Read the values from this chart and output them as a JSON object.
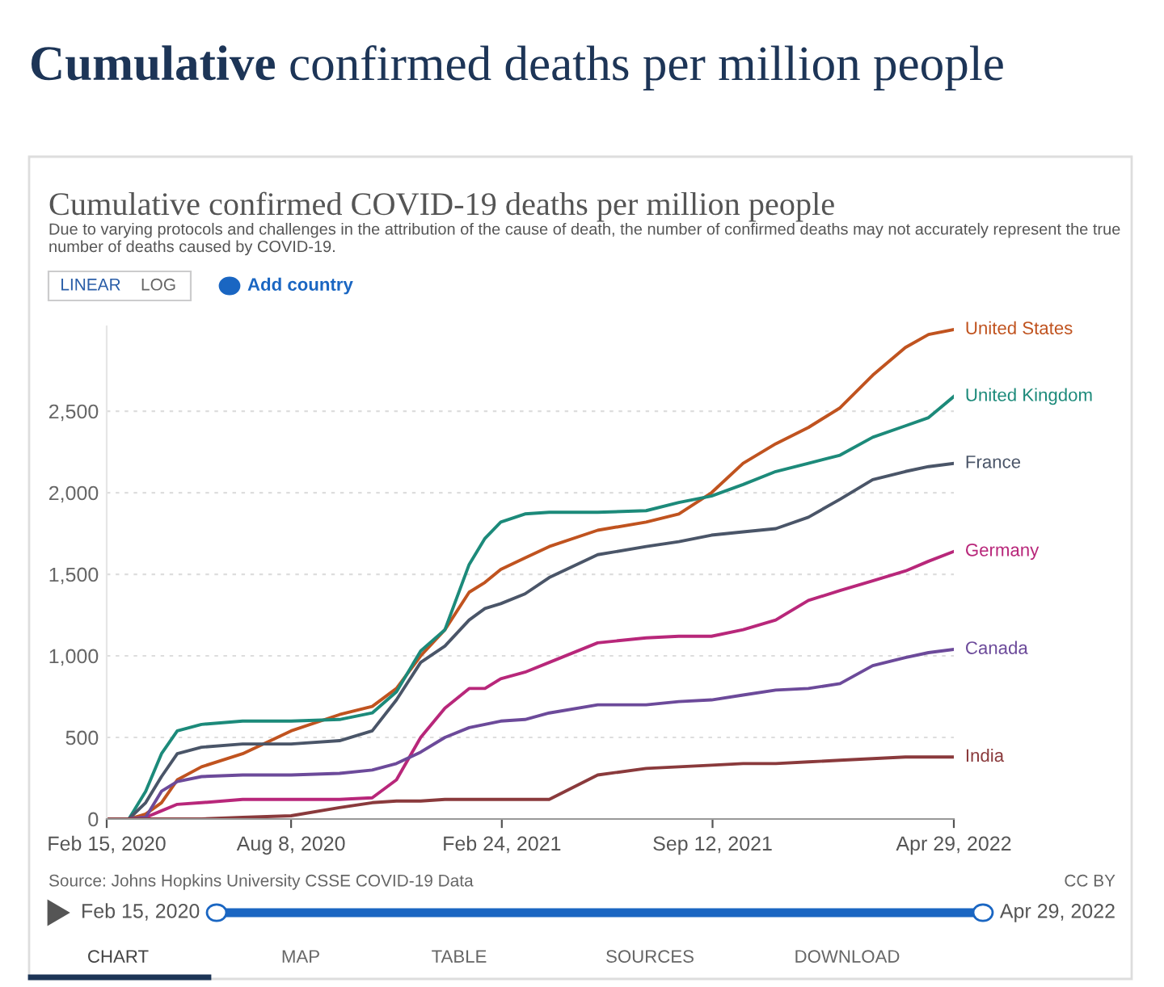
{
  "chart_data": {
    "type": "line",
    "title": "Cumulative confirmed COVID-19 deaths per million people",
    "subtitle": "Due to varying protocols and challenges in the attribution of the cause of death, the number of confirmed deaths may not accurately represent the true number of deaths caused by COVID-19.",
    "annotations": [
      "Cumulative confirmed deaths per million people",
      "LINEAR",
      "LOG",
      "Add country",
      "Source: Johns Hopkins University CSSE COVID-19 Data",
      "CC BY",
      "Feb 15, 2020",
      "Apr 29, 2022",
      "CHART",
      "MAP",
      "TABLE",
      "SOURCES",
      "DOWNLOAD"
    ],
    "x": [
      "2020-02-15",
      "2020-03-07",
      "2020-03-23",
      "2020-04-07",
      "2020-04-22",
      "2020-05-15",
      "2020-06-23",
      "2020-08-08",
      "2020-09-23",
      "2020-10-24",
      "2020-11-16",
      "2020-12-09",
      "2021-01-01",
      "2021-01-24",
      "2021-02-08",
      "2021-02-23",
      "2021-03-18",
      "2021-04-10",
      "2021-05-26",
      "2021-07-11",
      "2021-08-11",
      "2021-09-11",
      "2021-10-11",
      "2021-11-11",
      "2021-12-12",
      "2022-01-11",
      "2022-02-11",
      "2022-03-14",
      "2022-04-05",
      "2022-04-29"
    ],
    "series": [
      {
        "name": "United States",
        "color": "#c0531f",
        "values": [
          0,
          0,
          30,
          100,
          240,
          320,
          400,
          540,
          640,
          690,
          800,
          1000,
          1160,
          1390,
          1450,
          1530,
          1600,
          1670,
          1770,
          1820,
          1870,
          2000,
          2180,
          2300,
          2400,
          2520,
          2720,
          2890,
          2970,
          3000
        ]
      },
      {
        "name": "United Kingdom",
        "color": "#1c8a7a",
        "values": [
          0,
          0,
          170,
          400,
          540,
          580,
          600,
          600,
          610,
          650,
          780,
          1030,
          1160,
          1560,
          1720,
          1820,
          1870,
          1880,
          1880,
          1890,
          1940,
          1980,
          2050,
          2130,
          2180,
          2230,
          2340,
          2410,
          2460,
          2590
        ]
      },
      {
        "name": "France",
        "color": "#4a5568",
        "values": [
          0,
          0,
          100,
          260,
          400,
          440,
          460,
          460,
          480,
          540,
          730,
          960,
          1060,
          1220,
          1290,
          1320,
          1380,
          1480,
          1620,
          1670,
          1700,
          1740,
          1760,
          1780,
          1850,
          1960,
          2080,
          2130,
          2160,
          2180
        ]
      },
      {
        "name": "Germany",
        "color": "#b8277a",
        "values": [
          0,
          0,
          10,
          50,
          90,
          100,
          120,
          120,
          120,
          130,
          240,
          500,
          680,
          800,
          800,
          860,
          900,
          960,
          1080,
          1110,
          1120,
          1120,
          1160,
          1220,
          1340,
          1400,
          1460,
          1520,
          1580,
          1640
        ]
      },
      {
        "name": "Canada",
        "color": "#6c4a9a",
        "values": [
          0,
          0,
          10,
          170,
          230,
          260,
          270,
          270,
          280,
          300,
          340,
          410,
          500,
          560,
          580,
          600,
          610,
          650,
          700,
          700,
          720,
          730,
          760,
          790,
          800,
          830,
          940,
          990,
          1020,
          1040
        ]
      },
      {
        "name": "India",
        "color": "#8a3a3c",
        "values": [
          0,
          0,
          0,
          0,
          0,
          0,
          10,
          20,
          70,
          100,
          110,
          110,
          120,
          120,
          120,
          120,
          120,
          120,
          270,
          310,
          320,
          330,
          340,
          340,
          350,
          360,
          370,
          380,
          380,
          380
        ]
      }
    ],
    "xlim": [
      "2020-02-15",
      "2022-04-29"
    ],
    "ylim": [
      0,
      3020
    ],
    "yticks": [
      0,
      {
        "value": 500,
        "label": "500"
      },
      {
        "value": 1000,
        "label": "1,000"
      },
      {
        "value": 1500,
        "label": "1,500"
      },
      {
        "value": 2000,
        "label": "2,000"
      },
      {
        "value": 2500,
        "label": "2,500"
      }
    ],
    "xticks": [
      {
        "value": "2020-02-15",
        "label": "Feb 15, 2020"
      },
      {
        "value": "2020-08-08",
        "label": "Aug 8, 2020"
      },
      {
        "value": "2021-02-24",
        "label": "Feb 24, 2021"
      },
      {
        "value": "2021-09-12",
        "label": "Sep 12, 2021"
      },
      {
        "value": "2022-04-29",
        "label": "Apr 29, 2022"
      }
    ],
    "grid": "y",
    "legend": false,
    "marker": "none",
    "line_style": "solid"
  }
}
